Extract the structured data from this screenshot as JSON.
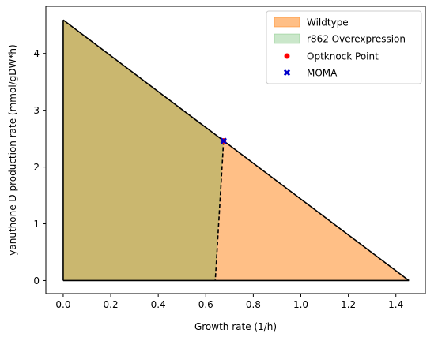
{
  "chart_data": {
    "type": "area",
    "title": "",
    "xlabel": "Growth rate (1/h)",
    "ylabel": "yanuthone D production rate (mmol/gDW*h)",
    "xlim": [
      -0.073,
      1.524
    ],
    "ylim": [
      -0.23,
      4.83
    ],
    "xticks": [
      "0.0",
      "0.2",
      "0.4",
      "0.6",
      "0.8",
      "1.0",
      "1.2",
      "1.4"
    ],
    "xtick_values": [
      0.0,
      0.2,
      0.4,
      0.6,
      0.8,
      1.0,
      1.2,
      1.4
    ],
    "yticks": [
      "0",
      "1",
      "2",
      "3",
      "4"
    ],
    "ytick_values": [
      0,
      1,
      2,
      3,
      4
    ],
    "grid": false,
    "legend_position": "upper right",
    "series": [
      {
        "name": "Wildtype",
        "kind": "fill",
        "color": "#ff7f0e",
        "opacity": 0.5,
        "points": [
          [
            0.0,
            4.59
          ],
          [
            1.455,
            0.0
          ],
          [
            0.0,
            0.0
          ]
        ]
      },
      {
        "name": "r862 Overexpression",
        "kind": "fill",
        "color": "#2ca02c",
        "opacity": 0.25,
        "points": [
          [
            0.0,
            4.59
          ],
          [
            0.675,
            2.46
          ],
          [
            0.64,
            0.0
          ],
          [
            0.0,
            0.0
          ]
        ]
      },
      {
        "name": "Optknock Point",
        "kind": "point",
        "marker": "circle",
        "color": "#ff0000",
        "x": 0.675,
        "y": 2.46
      },
      {
        "name": "MOMA",
        "kind": "point",
        "marker": "x",
        "color": "#0000cc",
        "x": 0.675,
        "y": 2.46
      }
    ],
    "outline_color": "#000000"
  }
}
